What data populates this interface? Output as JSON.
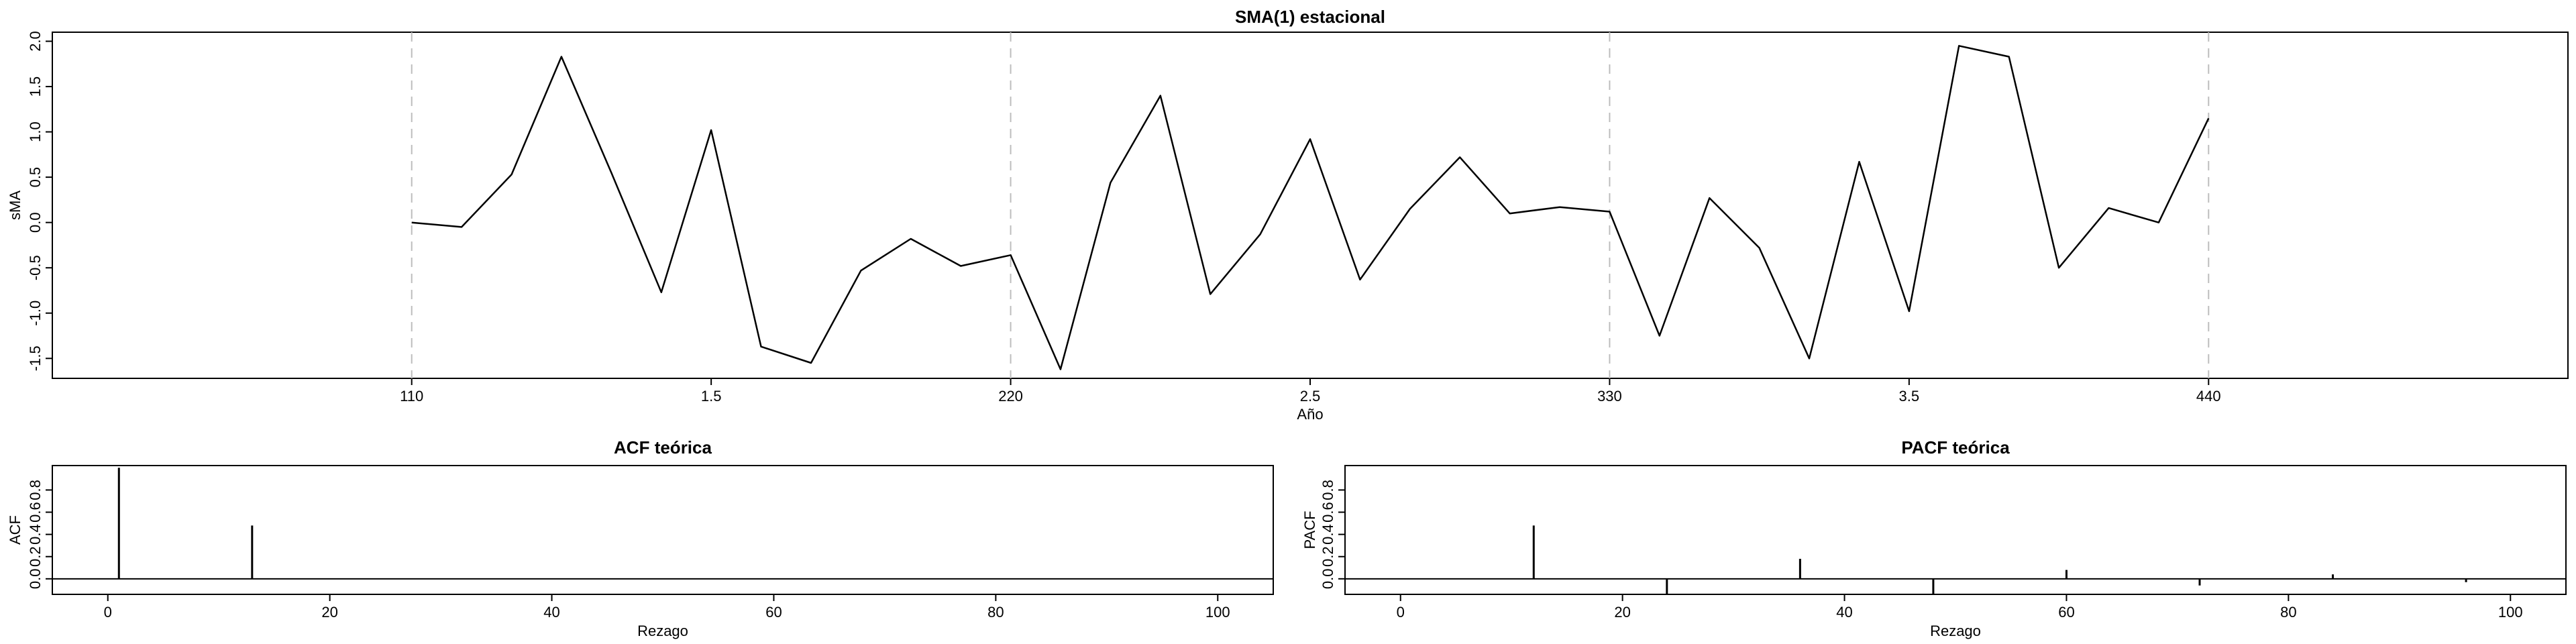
{
  "chart_data": [
    {
      "type": "line",
      "title": "SMA(1) estacional",
      "xlabel": "Año",
      "ylabel": "sMA",
      "x_ticks": [
        1,
        1.5,
        2,
        2.5,
        3,
        3.5,
        4
      ],
      "x_tick_labels": [
        "110",
        "1.5",
        "220",
        "2.5",
        "330",
        "3.5",
        "440"
      ],
      "y_ticks": [
        -1.5,
        -1.0,
        -0.5,
        0.0,
        0.5,
        1.0,
        1.5,
        2.0
      ],
      "y_tick_labels": [
        "-1.5",
        "-1.0",
        "-0.5",
        "0.0",
        "0.5",
        "1.0",
        "1.5",
        "2.0"
      ],
      "xlim": [
        0.4,
        4.6
      ],
      "ylim": [
        -1.72,
        2.1
      ],
      "vlines": [
        1,
        2,
        3,
        4
      ],
      "x": [
        1.0,
        1.0833,
        1.1667,
        1.25,
        1.3333,
        1.4167,
        1.5,
        1.5833,
        1.6667,
        1.75,
        1.8333,
        1.9167,
        2.0,
        2.0833,
        2.1667,
        2.25,
        2.3333,
        2.4167,
        2.5,
        2.5833,
        2.6667,
        2.75,
        2.8333,
        2.9167,
        3.0,
        3.0833,
        3.1667,
        3.25,
        3.3333,
        3.4167,
        3.5,
        3.5833,
        3.6667,
        3.75,
        3.8333,
        3.9167,
        4.0
      ],
      "values": [
        0.0,
        -0.05,
        0.53,
        1.83,
        0.55,
        -0.77,
        1.02,
        -1.37,
        -1.55,
        -0.53,
        -0.18,
        -0.48,
        -0.36,
        -1.62,
        0.44,
        1.4,
        -0.79,
        -0.13,
        0.92,
        -0.63,
        0.15,
        0.72,
        0.1,
        0.17,
        0.12,
        -1.25,
        0.27,
        -0.28,
        -1.5,
        0.67,
        -0.98,
        1.95,
        1.83,
        -0.5,
        0.16,
        0.0,
        1.15
      ]
    },
    {
      "type": "bar",
      "title": "ACF teórica",
      "xlabel": "Rezago",
      "ylabel": "ACF",
      "x_ticks": [
        0,
        20,
        40,
        60,
        80,
        100
      ],
      "x_tick_labels": [
        "0",
        "20",
        "40",
        "60",
        "80",
        "100"
      ],
      "y_ticks": [
        0.0,
        0.2,
        0.4,
        0.6,
        0.8
      ],
      "y_tick_labels": [
        "0.0",
        "0.2",
        "0.4",
        "0.6",
        "0.8"
      ],
      "xlim": [
        -5,
        105
      ],
      "ylim": [
        -0.14,
        1.02
      ],
      "lags": [
        1,
        13
      ],
      "values": [
        1.0,
        0.48
      ]
    },
    {
      "type": "bar",
      "title": "PACF teórica",
      "xlabel": "Rezago",
      "ylabel": "PACF",
      "x_ticks": [
        0,
        20,
        40,
        60,
        80,
        100
      ],
      "x_tick_labels": [
        "0",
        "20",
        "40",
        "60",
        "80",
        "100"
      ],
      "y_ticks": [
        0.0,
        0.2,
        0.4,
        0.6,
        0.8
      ],
      "y_tick_labels": [
        "0.0",
        "0.2",
        "0.4",
        "0.6",
        "0.8"
      ],
      "xlim": [
        -5,
        105
      ],
      "ylim": [
        -0.14,
        1.02
      ],
      "lags": [
        12,
        24,
        36,
        48,
        60,
        72,
        84,
        96
      ],
      "values": [
        0.48,
        -0.14,
        0.18,
        -0.14,
        0.08,
        -0.06,
        0.04,
        -0.03
      ]
    }
  ]
}
